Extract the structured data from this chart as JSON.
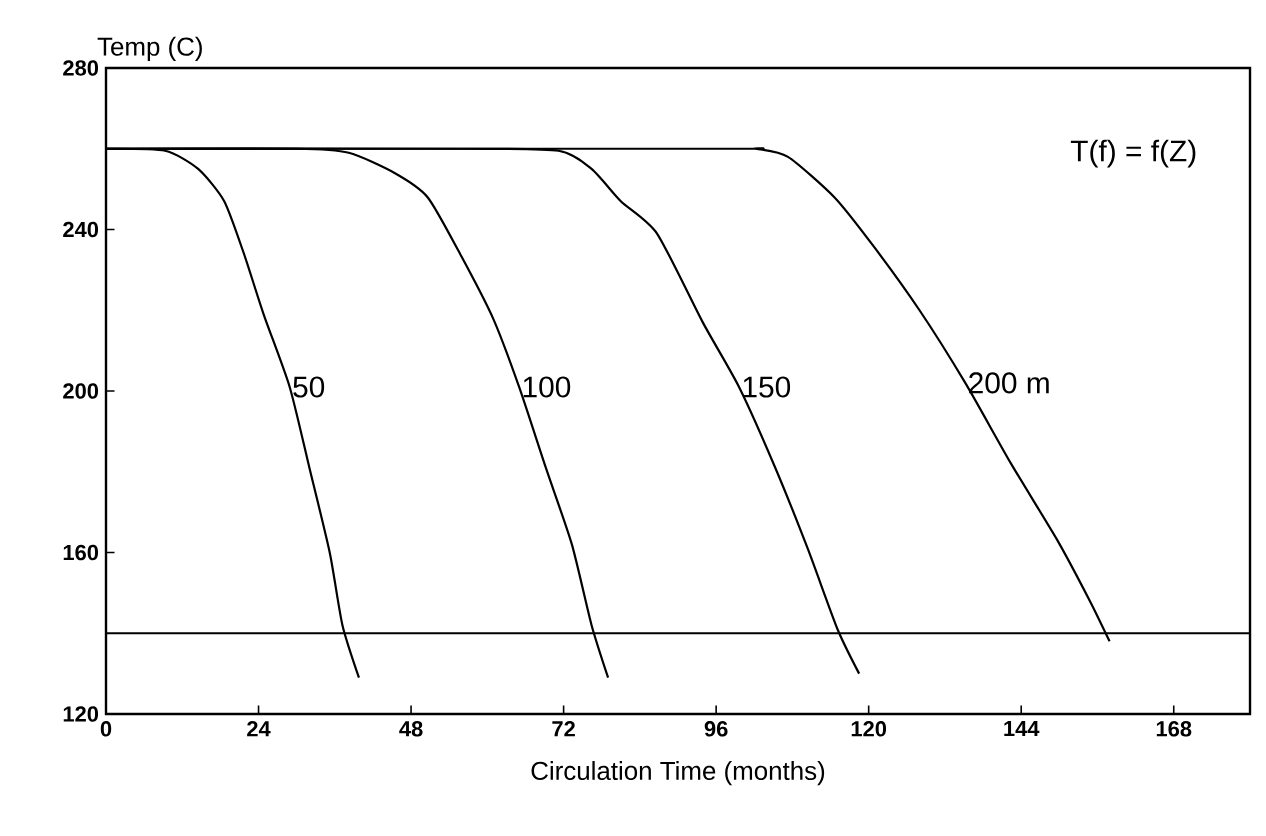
{
  "chart_data": {
    "type": "line",
    "xlabel": "Circulation Time (months)",
    "ylabel": "Temp (C)",
    "xlim": [
      0,
      180
    ],
    "ylim": [
      120,
      280
    ],
    "xticks": [
      0,
      24,
      48,
      72,
      96,
      120,
      144,
      168
    ],
    "yticks": [
      120,
      160,
      200,
      240,
      280
    ],
    "annotations": [
      "T(f) = f(Z)"
    ],
    "ref_lines": [
      {
        "axis": "y",
        "value": 140,
        "color": "#000000"
      }
    ],
    "series": [
      {
        "name": "50",
        "color": "#000000",
        "x": [
          0,
          9.3,
          14.5,
          18.6,
          21.7,
          24.8,
          28.9,
          32.0,
          35.2,
          37.2,
          39.8
        ],
        "values": [
          260,
          259.5,
          255,
          247,
          234,
          219,
          201,
          181,
          160,
          142,
          129
        ]
      },
      {
        "name": "100",
        "color": "#000000",
        "x": [
          0,
          30,
          38.2,
          45.4,
          50.6,
          55.7,
          60.9,
          65.0,
          69.2,
          73.3,
          76.4,
          79.0
        ],
        "values": [
          260,
          260,
          259,
          254,
          248,
          234,
          218,
          201,
          181,
          162,
          142,
          129
        ]
      },
      {
        "name": "150",
        "color": "#000000",
        "x": [
          0,
          56,
          71.2,
          76.4,
          81,
          86.7,
          93.9,
          99.6,
          105.3,
          110.4,
          115.1,
          118.5
        ],
        "values": [
          260,
          260,
          259.5,
          255,
          247,
          239,
          217,
          201,
          181,
          161,
          141,
          130
        ]
      },
      {
        "name": "200 m",
        "color": "#000000",
        "x": [
          0,
          97,
          102.2,
          107.3,
          114.6,
          120.7,
          128,
          135.2,
          142.4,
          149.7,
          154.8,
          157.9
        ],
        "values": [
          260,
          260,
          260,
          258,
          248,
          236,
          220,
          202,
          182,
          163,
          148,
          138
        ]
      }
    ]
  }
}
